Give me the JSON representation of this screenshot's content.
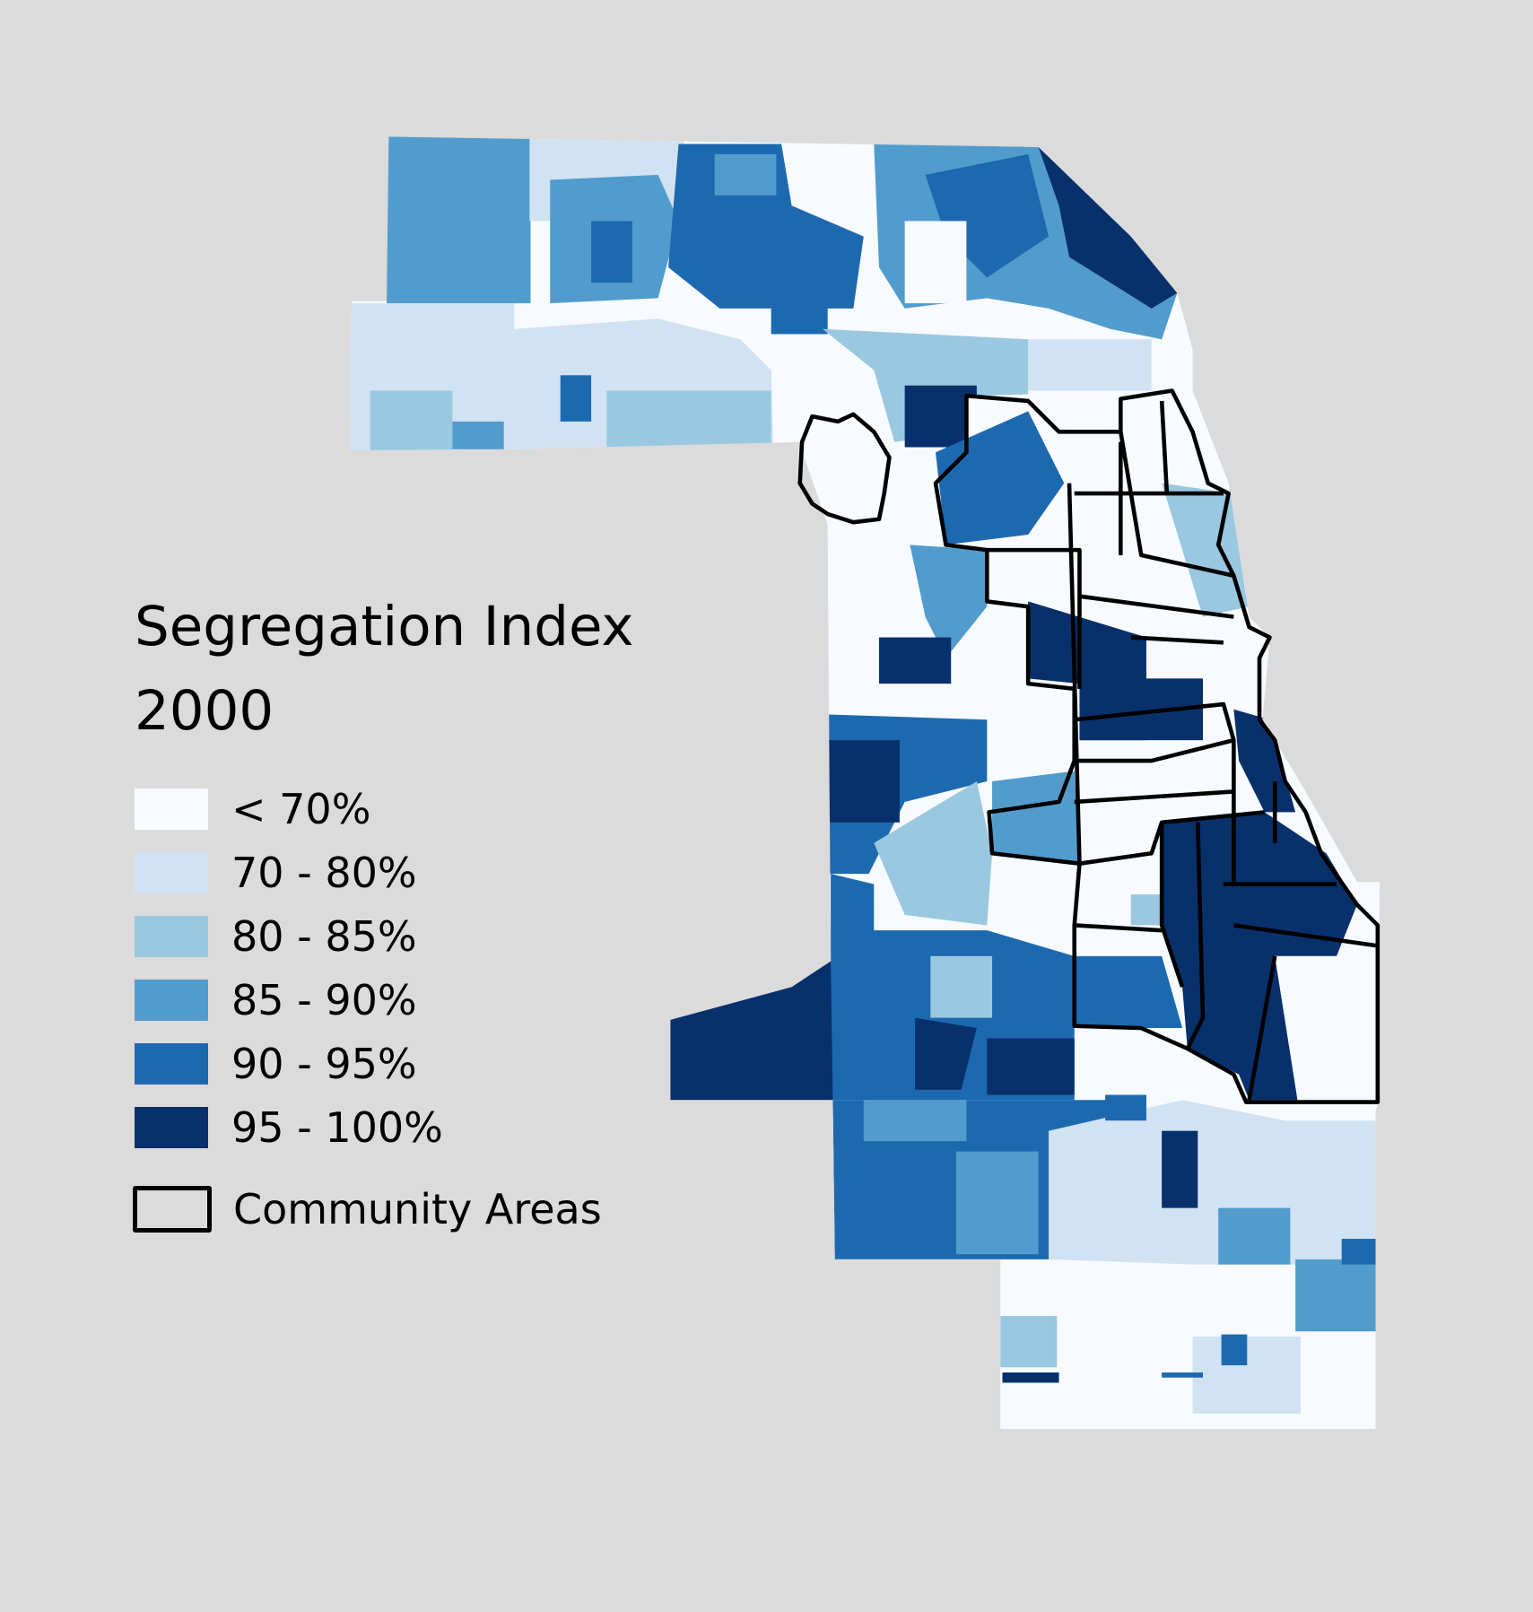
{
  "legend": {
    "title": "Segregation Index",
    "subtitle": "2000",
    "classes": [
      {
        "label": "< 70%",
        "color": "#f7fbff"
      },
      {
        "label": "70 - 80%",
        "color": "#d1e2f2"
      },
      {
        "label": "80 - 85%",
        "color": "#9ac8e0"
      },
      {
        "label": "85 - 90%",
        "color": "#519ccc"
      },
      {
        "label": "90 - 95%",
        "color": "#1d69b0"
      },
      {
        "label": "95 - 100%",
        "color": "#08306b"
      }
    ],
    "boundary_label": "Community Areas"
  }
}
